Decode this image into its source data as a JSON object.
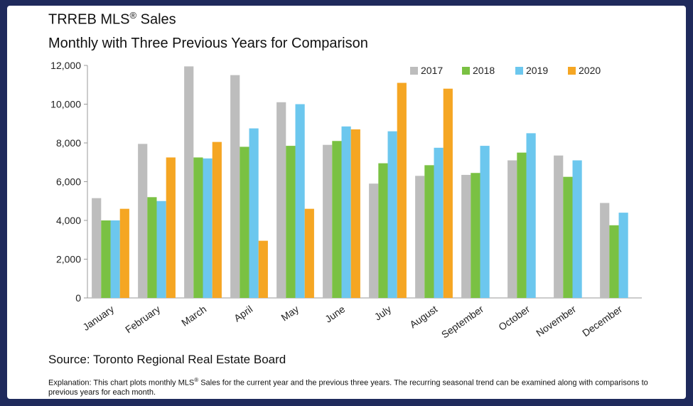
{
  "header": {
    "title": "TRREB MLS",
    "title_sup": "®",
    "title_suffix": " Sales",
    "subtitle": "Monthly with Three Previous Years for Comparison"
  },
  "footer": {
    "source": "Source: Toronto Regional Real Estate Board",
    "explanation_pre": "Explanation: This chart plots monthly MLS",
    "explanation_sup": "®",
    "explanation_post": " Sales for the current year and the previous three years. The recurring seasonal trend can be examined along with comparisons to previous years for each month."
  },
  "chart_data": {
    "type": "bar",
    "title": "TRREB MLS® Sales",
    "subtitle": "Monthly with Three Previous Years for Comparison",
    "xlabel": "",
    "ylabel": "",
    "ylim": [
      0,
      12000
    ],
    "yticks": [
      0,
      2000,
      4000,
      6000,
      8000,
      10000,
      12000
    ],
    "ytick_labels": [
      "0",
      "2,000",
      "4,000",
      "6,000",
      "8,000",
      "10,000",
      "12,000"
    ],
    "grid": false,
    "legend_position": "top-right",
    "categories": [
      "January",
      "February",
      "March",
      "April",
      "May",
      "June",
      "July",
      "August",
      "September",
      "October",
      "November",
      "December"
    ],
    "series": [
      {
        "name": "2017",
        "color": "#bdbdbd",
        "values": [
          5150,
          7950,
          11950,
          11500,
          10100,
          7900,
          5900,
          6300,
          6350,
          7100,
          7350,
          4900
        ]
      },
      {
        "name": "2018",
        "color": "#7ac143",
        "values": [
          4000,
          5200,
          7250,
          7800,
          7850,
          8100,
          6950,
          6850,
          6450,
          7500,
          6250,
          3750
        ]
      },
      {
        "name": "2019",
        "color": "#6cc7ee",
        "values": [
          4000,
          5000,
          7200,
          8750,
          10000,
          8850,
          8600,
          7750,
          7850,
          8500,
          7100,
          4400
        ]
      },
      {
        "name": "2020",
        "color": "#f5a623",
        "values": [
          4600,
          7250,
          8050,
          2950,
          4600,
          8700,
          11100,
          10800,
          null,
          null,
          null,
          null
        ]
      }
    ]
  }
}
